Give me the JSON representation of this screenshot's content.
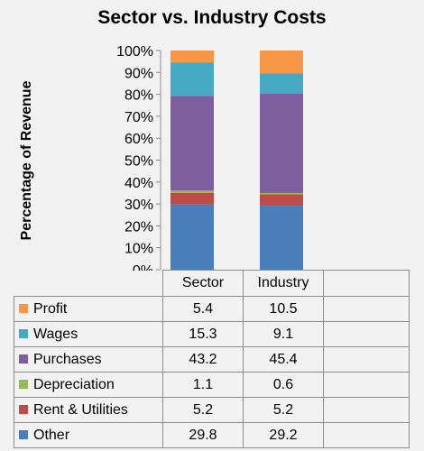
{
  "chart_data": {
    "type": "bar",
    "stacked": true,
    "title": "Sector vs. Industry Costs",
    "xlabel": "",
    "ylabel": "Percentage of Revenue",
    "ylim": [
      0,
      100
    ],
    "y_ticks": [
      "0%",
      "10%",
      "20%",
      "30%",
      "40%",
      "50%",
      "60%",
      "70%",
      "80%",
      "90%",
      "100%"
    ],
    "categories": [
      "Sector",
      "Industry"
    ],
    "series": [
      {
        "name": "Other",
        "values": [
          29.8,
          29.2
        ],
        "color": "#4a7ebb"
      },
      {
        "name": "Rent & Utilities",
        "values": [
          5.2,
          5.2
        ],
        "color": "#be4b48"
      },
      {
        "name": "Depreciation",
        "values": [
          1.1,
          0.6
        ],
        "color": "#98b954"
      },
      {
        "name": "Purchases",
        "values": [
          43.2,
          45.4
        ],
        "color": "#7d5fa0"
      },
      {
        "name": "Wages",
        "values": [
          15.3,
          9.1
        ],
        "color": "#46aac5"
      },
      {
        "name": "Profit",
        "values": [
          5.4,
          10.5
        ],
        "color": "#f79646"
      }
    ],
    "table_row_order": [
      "Profit",
      "Wages",
      "Purchases",
      "Depreciation",
      "Rent & Utilities",
      "Other"
    ],
    "grid": false,
    "legend": "data-table"
  }
}
